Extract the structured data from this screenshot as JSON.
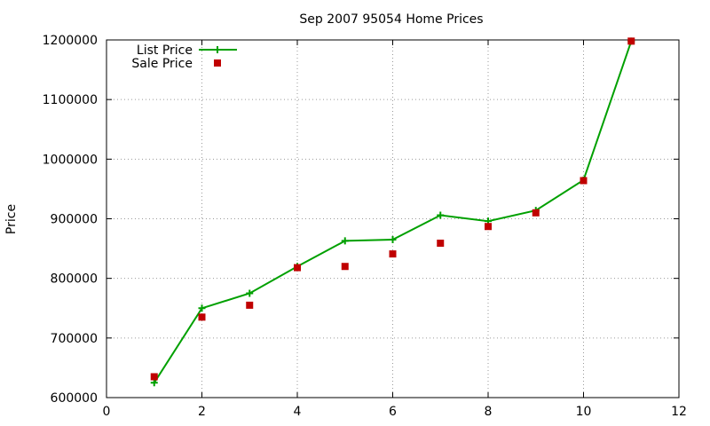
{
  "chart_data": {
    "type": "line",
    "title": "Sep 2007 95054 Home Prices",
    "xlabel": "",
    "ylabel": "Price",
    "xlim": [
      0,
      12
    ],
    "ylim": [
      600000,
      1200000
    ],
    "x_ticks": [
      0,
      2,
      4,
      6,
      8,
      10,
      12
    ],
    "y_ticks": [
      600000,
      700000,
      800000,
      900000,
      1000000,
      1100000,
      1200000
    ],
    "x_tick_labels": [
      "0",
      "2",
      "4",
      "6",
      "8",
      "10",
      "12"
    ],
    "y_tick_labels": [
      "600000",
      "700000",
      "800000",
      "900000",
      "1000000",
      "1100000",
      "1200000"
    ],
    "grid": true,
    "legend_position": "top-left",
    "series": [
      {
        "name": "List Price",
        "style": "line-with-plus",
        "color": "#00a000",
        "x": [
          1,
          2,
          3,
          4,
          5,
          6,
          7,
          8,
          9,
          10,
          11
        ],
        "y": [
          625000,
          750000,
          775000,
          820000,
          863000,
          865000,
          906000,
          896000,
          914000,
          965000,
          1198000
        ]
      },
      {
        "name": "Sale Price",
        "style": "square-points",
        "color": "#c00000",
        "x": [
          1,
          2,
          3,
          4,
          5,
          6,
          7,
          8,
          9,
          10,
          11
        ],
        "y": [
          635000,
          735000,
          755000,
          818000,
          820000,
          841000,
          859000,
          887000,
          910000,
          964000,
          1198000
        ]
      }
    ]
  }
}
